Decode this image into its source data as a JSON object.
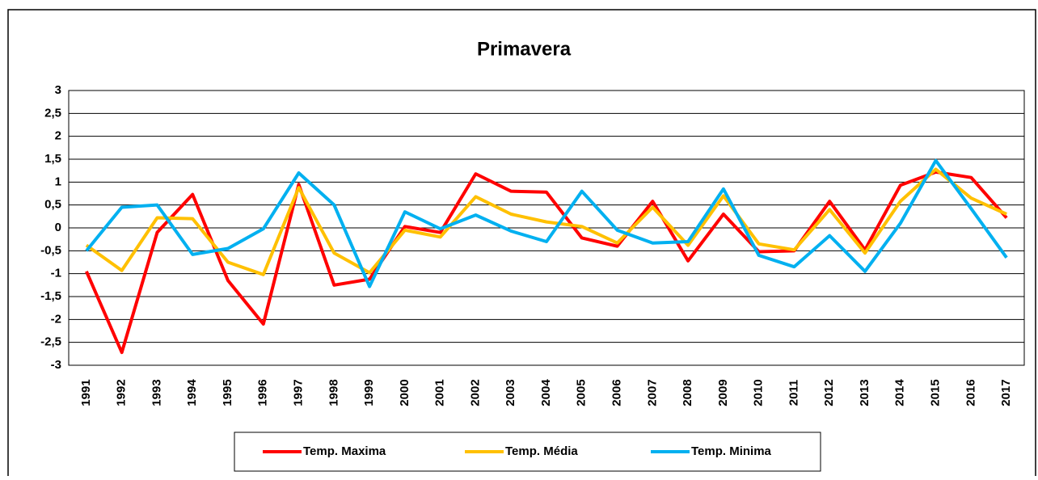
{
  "chart_data": {
    "type": "line",
    "title": "Primavera",
    "categories": [
      "1991",
      "1992",
      "1993",
      "1994",
      "1995",
      "1996",
      "1997",
      "1998",
      "1999",
      "2000",
      "2001",
      "2002",
      "2003",
      "2004",
      "2005",
      "2006",
      "2007",
      "2008",
      "2009",
      "2010",
      "2011",
      "2012",
      "2013",
      "2014",
      "2015",
      "2016",
      "2017"
    ],
    "series": [
      {
        "name": "Temp. Maxima",
        "color": "#ff0000",
        "values": [
          -0.95,
          -2.72,
          -0.1,
          0.73,
          -1.15,
          -2.1,
          0.95,
          -1.25,
          -1.12,
          0.03,
          -0.1,
          1.18,
          0.8,
          0.78,
          -0.22,
          -0.4,
          0.58,
          -0.72,
          0.3,
          -0.52,
          -0.5,
          0.58,
          -0.48,
          0.93,
          1.22,
          1.1,
          0.22
        ]
      },
      {
        "name": "Temp. Média",
        "color": "#ffc000",
        "values": [
          -0.38,
          -0.93,
          0.22,
          0.2,
          -0.75,
          -1.02,
          0.88,
          -0.55,
          -0.98,
          -0.05,
          -0.2,
          0.68,
          0.3,
          0.13,
          0.03,
          -0.33,
          0.45,
          -0.38,
          0.7,
          -0.35,
          -0.48,
          0.4,
          -0.55,
          0.58,
          1.28,
          0.65,
          0.3
        ]
      },
      {
        "name": "Temp. Minima",
        "color": "#00b0f0",
        "values": [
          -0.5,
          0.45,
          0.5,
          -0.58,
          -0.45,
          -0.02,
          1.2,
          0.5,
          -1.28,
          0.35,
          -0.02,
          0.28,
          -0.07,
          -0.3,
          0.8,
          -0.05,
          -0.33,
          -0.3,
          0.85,
          -0.6,
          -0.85,
          -0.17,
          -0.95,
          0.1,
          1.47,
          0.42,
          -0.65
        ]
      }
    ],
    "ylim": [
      -3,
      3
    ],
    "yticks": [
      3,
      {
        "value": 2.5,
        "label": "2,5"
      },
      2,
      {
        "value": 1.5,
        "label": "1,5"
      },
      1,
      {
        "value": 0.5,
        "label": "0,5"
      },
      0,
      {
        "value": -0.5,
        "label": "-0,5"
      },
      -1,
      {
        "value": -1.5,
        "label": "-1,5"
      },
      -2,
      {
        "value": -2.5,
        "label": "-2,5"
      },
      -3
    ],
    "grid": true,
    "legend": "bottom"
  }
}
